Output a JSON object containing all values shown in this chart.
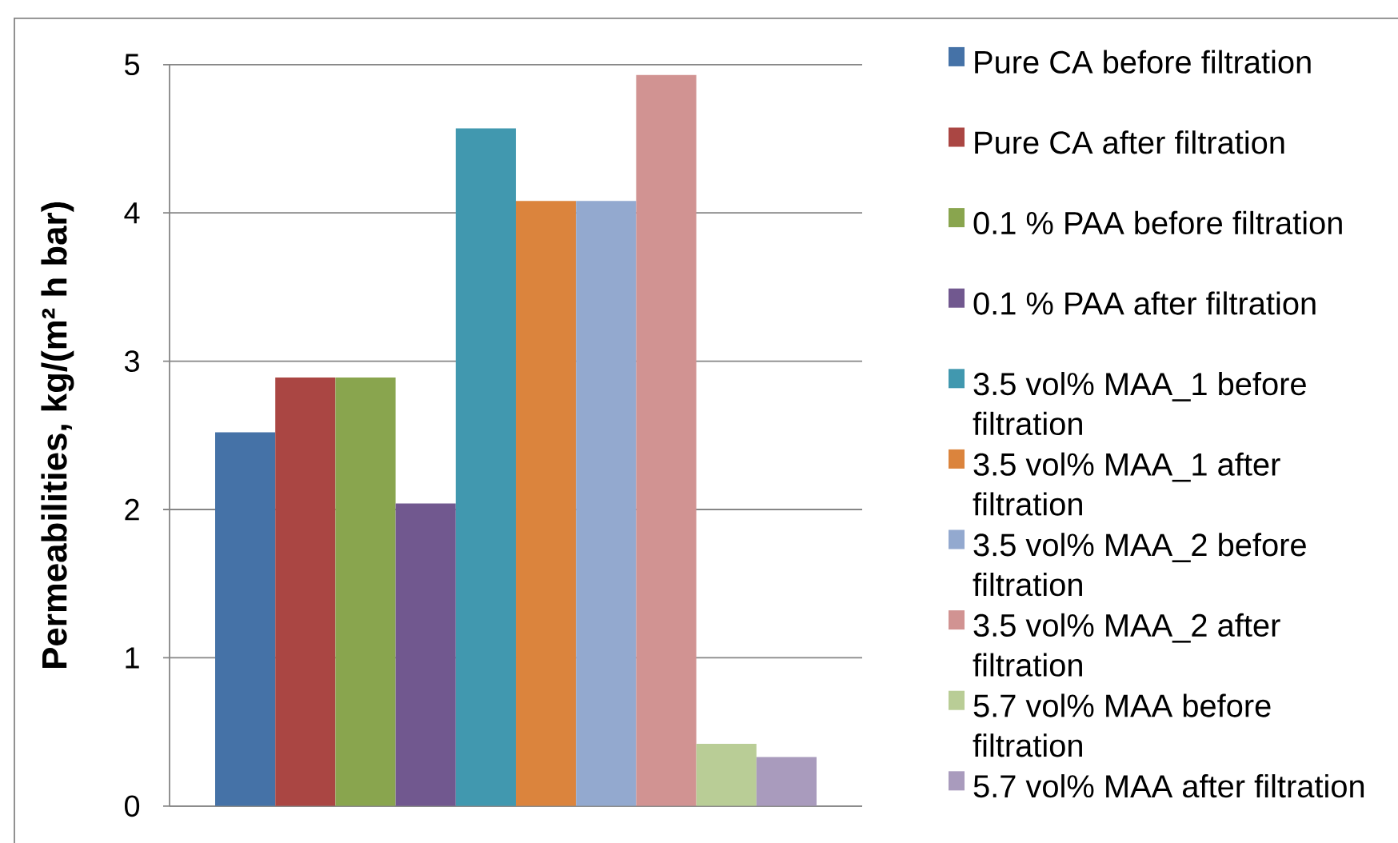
{
  "chart_data": {
    "type": "bar",
    "ylabel": "Permeabilities, kg/(m² h bar)",
    "categories": [
      null
    ],
    "series": [
      {
        "name": "Pure CA before filtration",
        "color": "#4572a7",
        "values": [
          2.52
        ]
      },
      {
        "name": "Pure CA after filtration",
        "color": "#aa4643",
        "values": [
          2.89
        ]
      },
      {
        "name": "0.1 % PAA before filtration",
        "color": "#89a54e",
        "values": [
          2.89
        ]
      },
      {
        "name": "0.1 % PAA after filtration",
        "color": "#71588f",
        "values": [
          2.04
        ]
      },
      {
        "name": "3.5 vol% MAA_1 before filtration",
        "color": "#4198af",
        "values": [
          4.57
        ]
      },
      {
        "name": "3.5 vol% MAA_1 after filtration",
        "color": "#db843d",
        "values": [
          4.08
        ]
      },
      {
        "name": "3.5 vol% MAA_2 before filtration",
        "color": "#93a9cf",
        "values": [
          4.08
        ]
      },
      {
        "name": "3.5 vol% MAA_2 after filtration",
        "color": "#d19392",
        "values": [
          4.93
        ]
      },
      {
        "name": "5.7 vol% MAA before filtration",
        "color": "#b9cd96",
        "values": [
          0.42
        ]
      },
      {
        "name": "5.7 vol% MAA after filtration",
        "color": "#a99bbd",
        "values": [
          0.33
        ]
      }
    ],
    "ylim": [
      0,
      5
    ],
    "yticks": [
      0,
      1,
      2,
      3,
      4,
      5
    ],
    "grid": "y",
    "legend": "right"
  }
}
